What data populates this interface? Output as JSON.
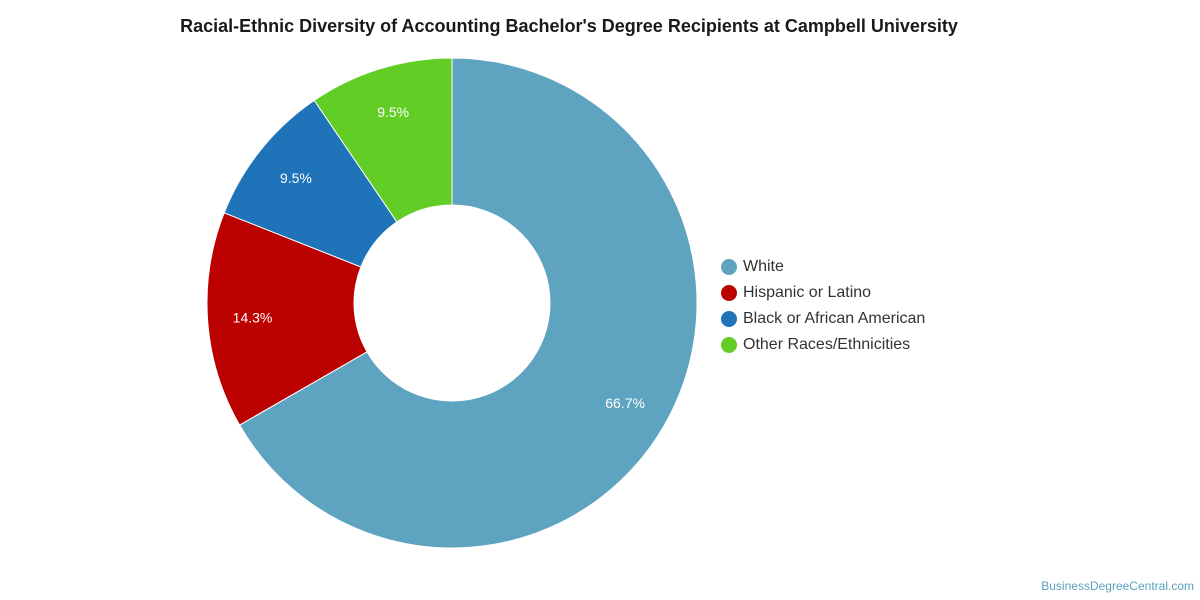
{
  "chart_data": {
    "type": "pie",
    "variant": "donut",
    "title": "Racial-Ethnic Diversity of Accounting Bachelor's Degree Recipients at Campbell University",
    "categories": [
      "White",
      "Hispanic or Latino",
      "Black or African American",
      "Other Races/Ethnicities"
    ],
    "values": [
      66.7,
      14.3,
      9.5,
      9.5
    ],
    "labels": [
      "66.7%",
      "14.3%",
      "9.5%",
      "9.5%"
    ],
    "colors": [
      "#5ea3c0",
      "#bb0000",
      "#1f73b9",
      "#62cd25"
    ],
    "legend_position": "right",
    "start_angle": "top",
    "direction": "clockwise"
  },
  "footer": {
    "source": "BusinessDegreeCentral.com"
  }
}
